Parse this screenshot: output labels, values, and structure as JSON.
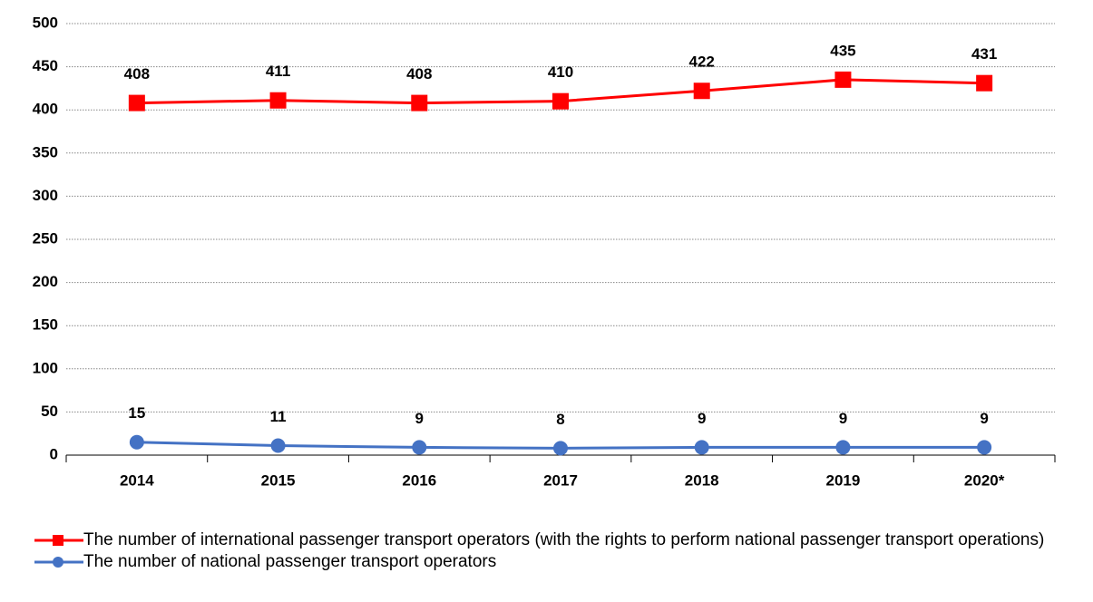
{
  "chart_data": {
    "type": "line",
    "categories": [
      "2014",
      "2015",
      "2016",
      "2017",
      "2018",
      "2019",
      "2020*"
    ],
    "series": [
      {
        "name": "The number of international passenger transport operators (with the rights to perform national passenger transport operations)",
        "color": "#ff0000",
        "marker": "square",
        "values": [
          408,
          411,
          408,
          410,
          422,
          435,
          431
        ]
      },
      {
        "name": "The number of national passenger transport operators",
        "color": "#4472c4",
        "marker": "circle",
        "values": [
          15,
          11,
          9,
          8,
          9,
          9,
          9
        ]
      }
    ],
    "ylim": [
      0,
      500
    ],
    "yticks": [
      0,
      50,
      100,
      150,
      200,
      250,
      300,
      350,
      400,
      450,
      500
    ],
    "grid": true,
    "legend": "bottom"
  }
}
